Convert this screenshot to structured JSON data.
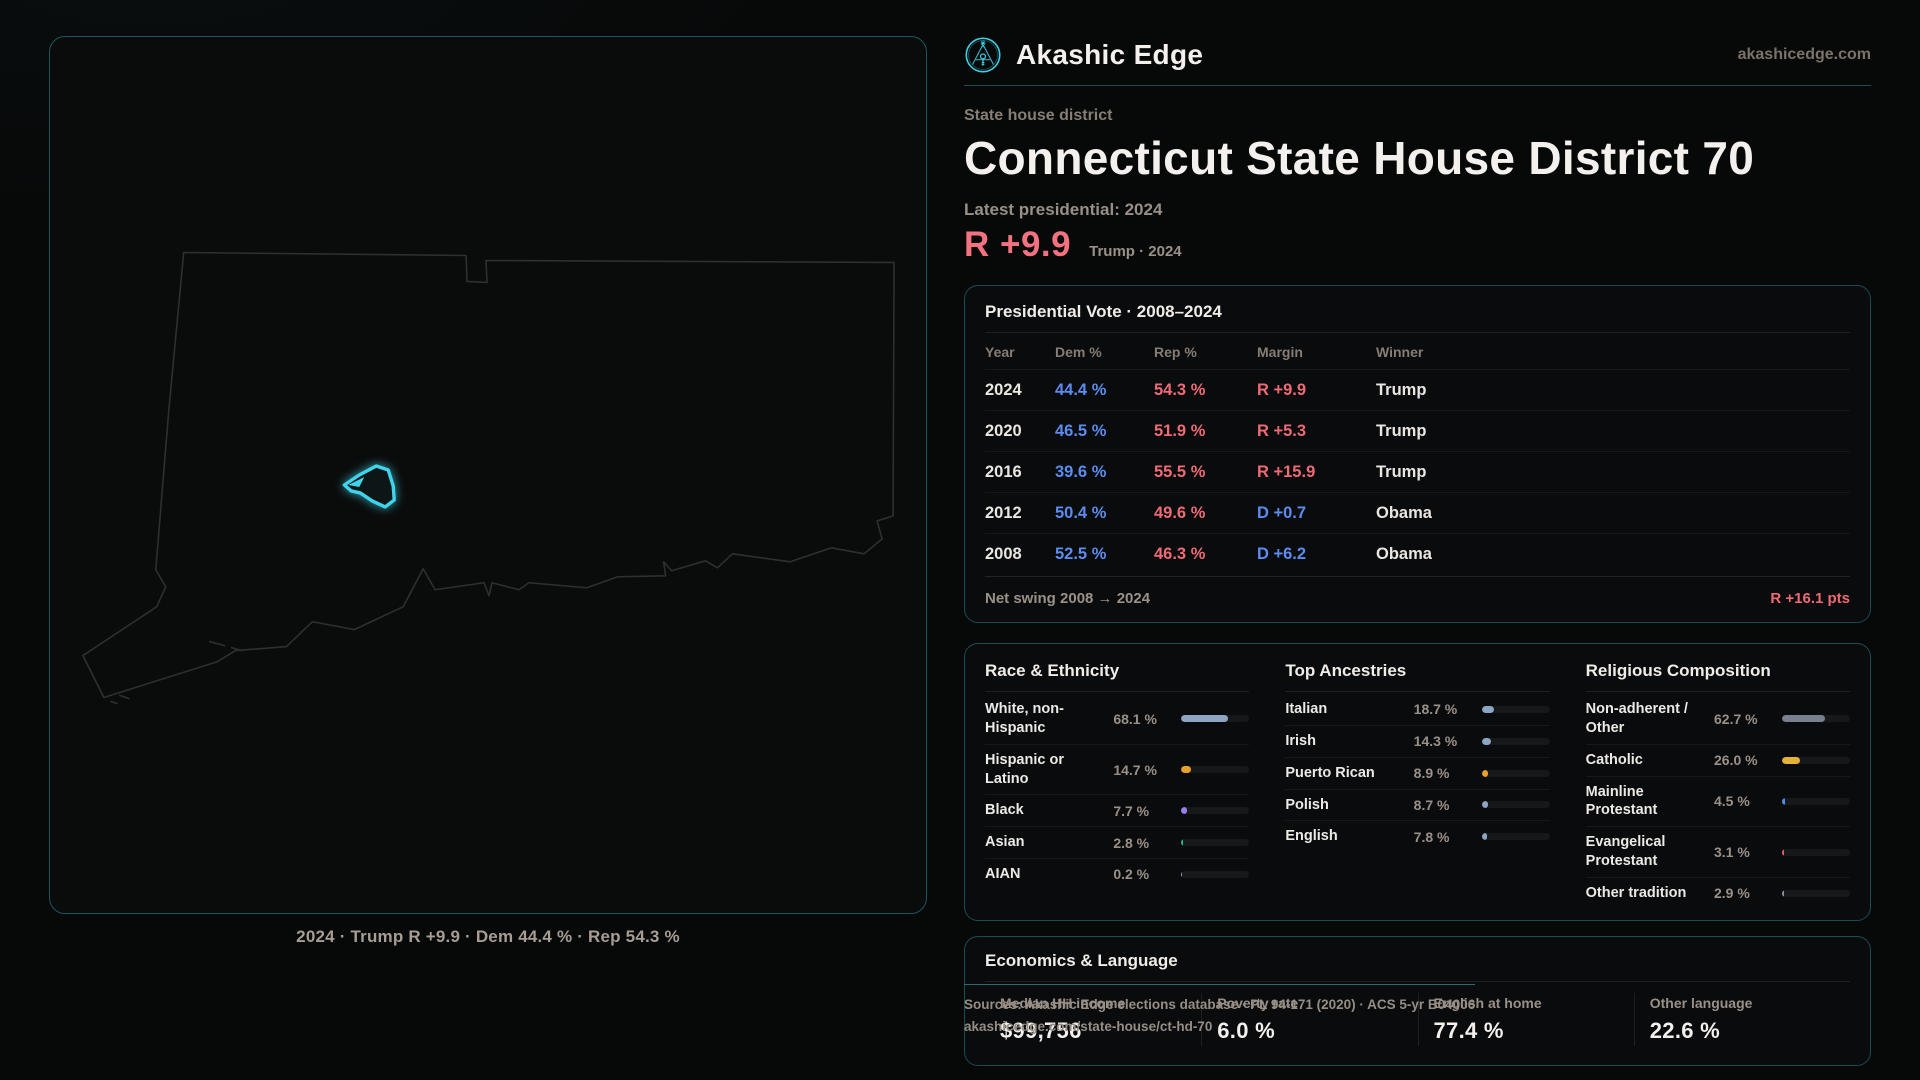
{
  "brand": {
    "name": "Akashic Edge",
    "domain": "akashicedge.com"
  },
  "hero": {
    "kicker": "State house district",
    "title": "Connecticut State House District 70",
    "latest": "Latest presidential: 2024",
    "margin": "R +9.9",
    "margin_note": "Trump · 2024"
  },
  "map": {
    "caption": "2024 · Trump R +9.9 · Dem 44.4 % · Rep 54.3 %"
  },
  "presidential": {
    "title": "Presidential Vote · 2008–2024",
    "columns": {
      "year": "Year",
      "dem": "Dem %",
      "rep": "Rep %",
      "margin": "Margin",
      "winner": "Winner"
    },
    "rows": [
      {
        "year": "2024",
        "dem": "44.4 %",
        "rep": "54.3 %",
        "margin": "R +9.9",
        "party": "r",
        "winner": "Trump"
      },
      {
        "year": "2020",
        "dem": "46.5 %",
        "rep": "51.9 %",
        "margin": "R +5.3",
        "party": "r",
        "winner": "Trump"
      },
      {
        "year": "2016",
        "dem": "39.6 %",
        "rep": "55.5 %",
        "margin": "R +15.9",
        "party": "r",
        "winner": "Trump"
      },
      {
        "year": "2012",
        "dem": "50.4 %",
        "rep": "49.6 %",
        "margin": "D +0.7",
        "party": "d",
        "winner": "Obama"
      },
      {
        "year": "2008",
        "dem": "52.5 %",
        "rep": "46.3 %",
        "margin": "D +6.2",
        "party": "d",
        "winner": "Obama"
      }
    ],
    "net_swing_label": "Net swing 2008 → 2024",
    "net_swing_value": "R +16.1 pts",
    "net_swing_party": "r"
  },
  "demographics": {
    "race": {
      "title": "Race & Ethnicity",
      "rows": [
        {
          "label": "White, non-Hispanic",
          "value": "68.1 %",
          "pct": 68.1,
          "color": "#8da5c3"
        },
        {
          "label": "Hispanic or Latino",
          "value": "14.7 %",
          "pct": 14.7,
          "color": "#e8a12e"
        },
        {
          "label": "Black",
          "value": "7.7 %",
          "pct": 7.7,
          "color": "#9b7df0"
        },
        {
          "label": "Asian",
          "value": "2.8 %",
          "pct": 2.8,
          "color": "#17bf92"
        },
        {
          "label": "AIAN",
          "value": "0.2 %",
          "pct": 0.2,
          "color": "#8da5c3"
        }
      ]
    },
    "ancestries": {
      "title": "Top Ancestries",
      "rows": [
        {
          "label": "Italian",
          "value": "18.7 %",
          "pct": 18.7,
          "color": "#8da5c3"
        },
        {
          "label": "Irish",
          "value": "14.3 %",
          "pct": 14.3,
          "color": "#8da5c3"
        },
        {
          "label": "Puerto Rican",
          "value": "8.9 %",
          "pct": 8.9,
          "color": "#e8a12e"
        },
        {
          "label": "Polish",
          "value": "8.7 %",
          "pct": 8.7,
          "color": "#8da5c3"
        },
        {
          "label": "English",
          "value": "7.8 %",
          "pct": 7.8,
          "color": "#8da5c3"
        }
      ]
    },
    "religion": {
      "title": "Religious Composition",
      "rows": [
        {
          "label": "Non-adherent / Other",
          "value": "62.7 %",
          "pct": 62.7,
          "color": "#78808f"
        },
        {
          "label": "Catholic",
          "value": "26.0 %",
          "pct": 26.0,
          "color": "#e3b136"
        },
        {
          "label": "Mainline Protestant",
          "value": "4.5 %",
          "pct": 4.5,
          "color": "#4d8ee8"
        },
        {
          "label": "Evangelical Protestant",
          "value": "3.1 %",
          "pct": 3.1,
          "color": "#e2636c"
        },
        {
          "label": "Other tradition",
          "value": "2.9 %",
          "pct": 2.9,
          "color": "#8b94a2"
        }
      ]
    }
  },
  "economics": {
    "title": "Economics & Language",
    "stats": [
      {
        "label": "Median HH income",
        "value": "$99,756"
      },
      {
        "label": "Poverty rate",
        "value": "6.0 %"
      },
      {
        "label": "English at home",
        "value": "77.4 %"
      },
      {
        "label": "Other language",
        "value": "22.6 %"
      }
    ]
  },
  "footer": {
    "line1": "Sources: Akashic Edge elections database · PL 94-171 (2020) · ACS 5-yr B04006",
    "line2": "akashicedge.com/state-house/ct-hd-70"
  },
  "colors": {
    "accent": "#3ecfe5",
    "dem": "#5b8cf0",
    "rep": "#ee6a75"
  }
}
